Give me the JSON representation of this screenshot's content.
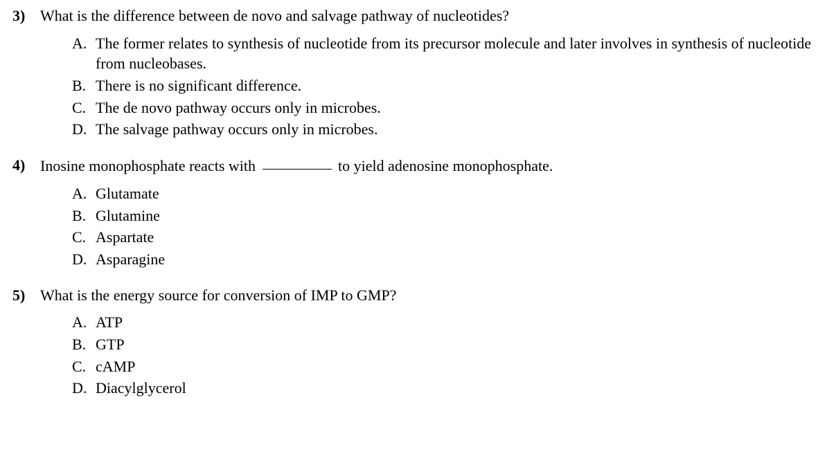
{
  "questions": [
    {
      "number": "3)",
      "text": "What is the difference between de novo and salvage pathway of nucleotides?",
      "has_blank": false,
      "options": [
        {
          "letter": "A.",
          "text": "The former relates to synthesis of nucleotide from its precursor molecule and later involves in synthesis of nucleotide from nucleobases."
        },
        {
          "letter": "B.",
          "text": "There is no significant difference."
        },
        {
          "letter": "C.",
          "text": "The de novo pathway occurs only in microbes."
        },
        {
          "letter": "D.",
          "text": "The salvage pathway occurs only in microbes."
        }
      ]
    },
    {
      "number": "4)",
      "text_before": "Inosine monophosphate reacts with ",
      "text_after": " to yield adenosine monophosphate.",
      "has_blank": true,
      "options": [
        {
          "letter": "A.",
          "text": "Glutamate"
        },
        {
          "letter": "B.",
          "text": "Glutamine"
        },
        {
          "letter": "C.",
          "text": "Aspartate"
        },
        {
          "letter": "D.",
          "text": "Asparagine"
        }
      ]
    },
    {
      "number": "5)",
      "text": "What is the energy source for conversion of IMP to GMP?",
      "has_blank": false,
      "options": [
        {
          "letter": "A.",
          "text": "ATP"
        },
        {
          "letter": "B.",
          "text": "GTP"
        },
        {
          "letter": "C.",
          "text": "cAMP"
        },
        {
          "letter": "D.",
          "text": "Diacylglycerol"
        }
      ]
    }
  ]
}
